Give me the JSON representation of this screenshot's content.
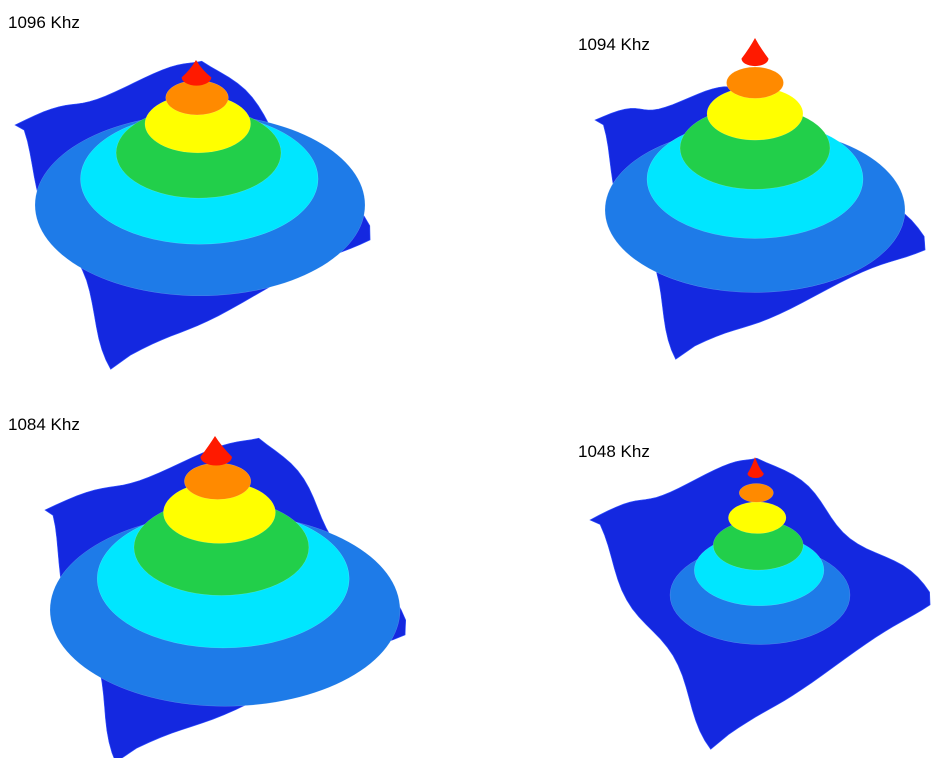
{
  "panels": [
    {
      "label": "1096 Khz"
    },
    {
      "label": "1094 Khz"
    },
    {
      "label": "1084 Khz"
    },
    {
      "label": "1048 Khz"
    }
  ]
}
